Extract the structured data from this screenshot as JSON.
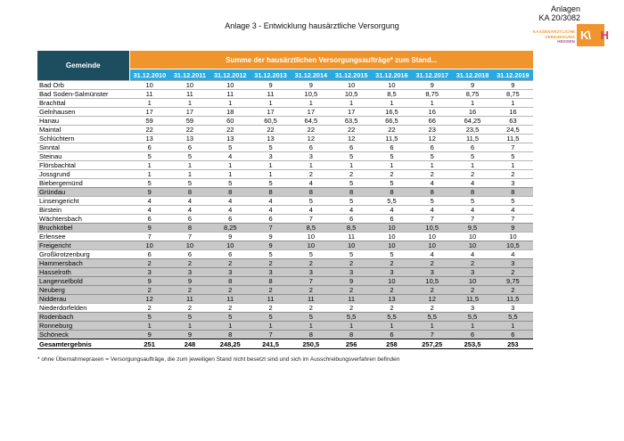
{
  "header": {
    "title": "Anlage 3 - Entwicklung hausärztliche Versorgung",
    "attachment_label": "Anlagen",
    "attachment_number": "KA 20/3082"
  },
  "logo": {
    "org_lines": [
      "KASSENÄRZTLICHE",
      "VEREINIGUNG",
      "HESSEN"
    ],
    "mark_left": "K\\",
    "mark_right": "H"
  },
  "table": {
    "gemeinde_header": "Gemeinde",
    "banner": "Summe der hausärztlichen Versorgungsaufträge* zum Stand...",
    "date_columns": [
      "31.12.2010",
      "31.12.2011",
      "31.12.2012",
      "31.12.2013",
      "31.12.2014",
      "31.12.2015",
      "31.12.2016",
      "31.12.2017",
      "31.12.2018",
      "31.12.2019"
    ],
    "rows": [
      {
        "name": "Bad Orb",
        "shaded": false,
        "values": [
          "10",
          "10",
          "10",
          "9",
          "9",
          "10",
          "10",
          "9",
          "9",
          "9"
        ]
      },
      {
        "name": "Bad Soden-Salmünster",
        "shaded": false,
        "values": [
          "11",
          "11",
          "11",
          "11",
          "10,5",
          "10,5",
          "8,5",
          "8,75",
          "8,75",
          "8,75"
        ]
      },
      {
        "name": "Brachttal",
        "shaded": false,
        "values": [
          "1",
          "1",
          "1",
          "1",
          "1",
          "1",
          "1",
          "1",
          "1",
          "1"
        ]
      },
      {
        "name": "Gelnhausen",
        "shaded": false,
        "values": [
          "17",
          "17",
          "18",
          "17",
          "17",
          "17",
          "16,5",
          "16",
          "16",
          "16"
        ]
      },
      {
        "name": "Hanau",
        "shaded": false,
        "values": [
          "59",
          "59",
          "60",
          "60,5",
          "64,5",
          "63,5",
          "66,5",
          "66",
          "64,25",
          "63"
        ]
      },
      {
        "name": "Maintal",
        "shaded": false,
        "values": [
          "22",
          "22",
          "22",
          "22",
          "22",
          "22",
          "22",
          "23",
          "23,5",
          "24,5"
        ]
      },
      {
        "name": "Schlüchtern",
        "shaded": false,
        "values": [
          "13",
          "13",
          "13",
          "13",
          "12",
          "12",
          "11,5",
          "12",
          "11,5",
          "11,5"
        ]
      },
      {
        "name": "Sinntal",
        "shaded": false,
        "values": [
          "6",
          "6",
          "5",
          "5",
          "6",
          "6",
          "6",
          "6",
          "6",
          "7"
        ]
      },
      {
        "name": "Steinau",
        "shaded": false,
        "values": [
          "5",
          "5",
          "4",
          "3",
          "3",
          "5",
          "5",
          "5",
          "5",
          "5"
        ]
      },
      {
        "name": "Flörsbachtal",
        "shaded": false,
        "values": [
          "1",
          "1",
          "1",
          "1",
          "1",
          "1",
          "1",
          "1",
          "1",
          "1"
        ]
      },
      {
        "name": "Jossgrund",
        "shaded": false,
        "values": [
          "1",
          "1",
          "1",
          "1",
          "2",
          "2",
          "2",
          "2",
          "2",
          "2"
        ]
      },
      {
        "name": "Biebergemünd",
        "shaded": false,
        "values": [
          "5",
          "5",
          "5",
          "5",
          "4",
          "5",
          "5",
          "4",
          "4",
          "3"
        ]
      },
      {
        "name": "Gründau",
        "shaded": true,
        "values": [
          "9",
          "8",
          "8",
          "8",
          "8",
          "8",
          "8",
          "8",
          "8",
          "8"
        ]
      },
      {
        "name": "Linsengericht",
        "shaded": false,
        "values": [
          "4",
          "4",
          "4",
          "4",
          "5",
          "5",
          "5,5",
          "5",
          "5",
          "5"
        ]
      },
      {
        "name": "Birstein",
        "shaded": false,
        "values": [
          "4",
          "4",
          "4",
          "4",
          "4",
          "4",
          "4",
          "4",
          "4",
          "4"
        ]
      },
      {
        "name": "Wächtersbach",
        "shaded": false,
        "values": [
          "6",
          "6",
          "6",
          "6",
          "7",
          "6",
          "6",
          "7",
          "7",
          "7"
        ]
      },
      {
        "name": "Bruchköbel",
        "shaded": true,
        "values": [
          "9",
          "8",
          "8,25",
          "7",
          "8,5",
          "8,5",
          "10",
          "10,5",
          "9,5",
          "9"
        ]
      },
      {
        "name": "Erlensee",
        "shaded": false,
        "values": [
          "7",
          "7",
          "9",
          "9",
          "10",
          "11",
          "10",
          "10",
          "10",
          "10"
        ]
      },
      {
        "name": "Freigericht",
        "shaded": true,
        "values": [
          "10",
          "10",
          "10",
          "9",
          "10",
          "10",
          "10",
          "10",
          "10",
          "10,5"
        ]
      },
      {
        "name": "Großkrotzenburg",
        "shaded": false,
        "values": [
          "6",
          "6",
          "6",
          "5",
          "5",
          "5",
          "5",
          "4",
          "4",
          "4"
        ]
      },
      {
        "name": "Hammersbach",
        "shaded": true,
        "values": [
          "2",
          "2",
          "2",
          "2",
          "2",
          "2",
          "2",
          "2",
          "2",
          "3"
        ]
      },
      {
        "name": "Hasselroth",
        "shaded": true,
        "values": [
          "3",
          "3",
          "3",
          "3",
          "3",
          "3",
          "3",
          "3",
          "3",
          "2"
        ]
      },
      {
        "name": "Langenselbold",
        "shaded": true,
        "values": [
          "9",
          "9",
          "8",
          "8",
          "7",
          "9",
          "10",
          "10,5",
          "10",
          "9,75"
        ]
      },
      {
        "name": "Neuberg",
        "shaded": true,
        "values": [
          "2",
          "2",
          "2",
          "2",
          "2",
          "2",
          "2",
          "2",
          "2",
          "2"
        ]
      },
      {
        "name": "Nidderau",
        "shaded": true,
        "values": [
          "12",
          "11",
          "11",
          "11",
          "11",
          "11",
          "13",
          "12",
          "11,5",
          "11,5"
        ]
      },
      {
        "name": "Niederdorfelden",
        "shaded": false,
        "values": [
          "2",
          "2",
          "2",
          "2",
          "2",
          "2",
          "2",
          "2",
          "3",
          "3"
        ]
      },
      {
        "name": "Rodenbach",
        "shaded": true,
        "values": [
          "5",
          "5",
          "5",
          "5",
          "5",
          "5,5",
          "5,5",
          "5,5",
          "5,5",
          "5,5"
        ]
      },
      {
        "name": "Ronneburg",
        "shaded": true,
        "values": [
          "1",
          "1",
          "1",
          "1",
          "1",
          "1",
          "1",
          "1",
          "1",
          "1"
        ]
      },
      {
        "name": "Schöneck",
        "shaded": true,
        "values": [
          "9",
          "9",
          "8",
          "7",
          "8",
          "8",
          "6",
          "7",
          "6",
          "6"
        ]
      }
    ],
    "total_row": {
      "name": "Gesamtergebnis",
      "values": [
        "251",
        "248",
        "248,25",
        "241,5",
        "250,5",
        "256",
        "258",
        "257,25",
        "253,5",
        "253"
      ]
    }
  },
  "footnote": "* ohne Übernahmepraxen = Versorgungsaufträge, die zum jeweiligen Stand nicht besetzt sind und sich im Ausschreibungsverfahren befinden",
  "colors": {
    "header_blue": "#1d4e60",
    "header_orange": "#f0952d",
    "header_lightblue": "#2aa9e0",
    "row_shaded": "#c8c8c8",
    "border_gray": "#b5b5b5",
    "border_dark": "#8f8f8f",
    "logo_magenta": "#c2426e",
    "logo_purple": "#9c4e97"
  }
}
